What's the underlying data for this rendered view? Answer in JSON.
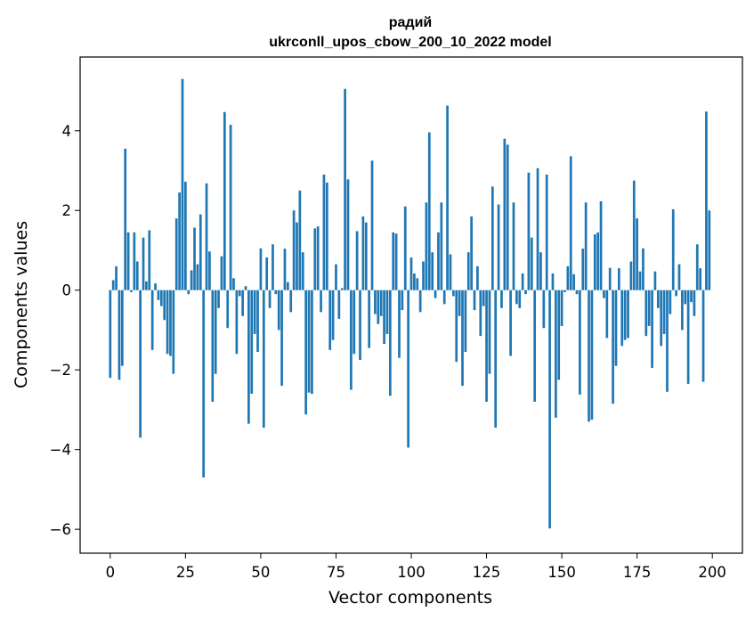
{
  "chart_data": {
    "type": "bar",
    "title": "радий",
    "subtitle": "ukrconll_upos_cbow_200_10_2022 model",
    "xlabel": "Vector components",
    "ylabel": "Components values",
    "xlim": [
      -10,
      210
    ],
    "ylim": [
      -6.6,
      5.85
    ],
    "xticks": [
      0,
      25,
      50,
      75,
      100,
      125,
      150,
      175,
      200
    ],
    "xtick_labels": [
      "0",
      "25",
      "50",
      "75",
      "100",
      "125",
      "150",
      "175",
      "200"
    ],
    "yticks": [
      -6,
      -4,
      -2,
      0,
      2,
      4
    ],
    "ytick_labels": [
      "−6",
      "−4",
      "−2",
      "0",
      "2",
      "4"
    ],
    "bar_color": "#1f77b4",
    "grid": false,
    "legend": "none",
    "x": [
      0,
      1,
      2,
      3,
      4,
      5,
      6,
      7,
      8,
      9,
      10,
      11,
      12,
      13,
      14,
      15,
      16,
      17,
      18,
      19,
      20,
      21,
      22,
      23,
      24,
      25,
      26,
      27,
      28,
      29,
      30,
      31,
      32,
      33,
      34,
      35,
      36,
      37,
      38,
      39,
      40,
      41,
      42,
      43,
      44,
      45,
      46,
      47,
      48,
      49,
      50,
      51,
      52,
      53,
      54,
      55,
      56,
      57,
      58,
      59,
      60,
      61,
      62,
      63,
      64,
      65,
      66,
      67,
      68,
      69,
      70,
      71,
      72,
      73,
      74,
      75,
      76,
      77,
      78,
      79,
      80,
      81,
      82,
      83,
      84,
      85,
      86,
      87,
      88,
      89,
      90,
      91,
      92,
      93,
      94,
      95,
      96,
      97,
      98,
      99,
      100,
      101,
      102,
      103,
      104,
      105,
      106,
      107,
      108,
      109,
      110,
      111,
      112,
      113,
      114,
      115,
      116,
      117,
      118,
      119,
      120,
      121,
      122,
      123,
      124,
      125,
      126,
      127,
      128,
      129,
      130,
      131,
      132,
      133,
      134,
      135,
      136,
      137,
      138,
      139,
      140,
      141,
      142,
      143,
      144,
      145,
      146,
      147,
      148,
      149,
      150,
      151,
      152,
      153,
      154,
      155,
      156,
      157,
      158,
      159,
      160,
      161,
      162,
      163,
      164,
      165,
      166,
      167,
      168,
      169,
      170,
      171,
      172,
      173,
      174,
      175,
      176,
      177,
      178,
      179,
      180,
      181,
      182,
      183,
      184,
      185,
      186,
      187,
      188,
      189,
      190,
      191,
      192,
      193,
      194,
      195,
      196,
      197,
      198,
      199
    ],
    "values": [
      -2.2,
      0.25,
      0.6,
      -2.25,
      -1.9,
      3.55,
      1.45,
      -0.05,
      1.45,
      0.72,
      -3.7,
      1.32,
      0.22,
      1.5,
      -1.5,
      0.17,
      -0.25,
      -0.4,
      -0.75,
      -1.6,
      -1.65,
      -2.1,
      1.8,
      2.45,
      5.3,
      2.72,
      -0.1,
      0.5,
      1.57,
      0.65,
      1.9,
      -4.7,
      2.68,
      0.97,
      -2.8,
      -2.1,
      -0.45,
      0.85,
      4.47,
      -0.95,
      4.15,
      0.3,
      -1.6,
      -0.15,
      -0.65,
      0.1,
      -3.35,
      -2.6,
      -1.1,
      -1.55,
      1.05,
      -3.45,
      0.82,
      -0.45,
      1.15,
      -0.1,
      -1.0,
      -2.4,
      1.04,
      0.2,
      -0.55,
      2.0,
      1.7,
      2.5,
      0.95,
      -3.12,
      -2.57,
      -2.6,
      1.55,
      1.6,
      -0.55,
      2.9,
      2.7,
      -1.5,
      -1.25,
      0.65,
      -0.72,
      0.05,
      5.05,
      2.78,
      -2.5,
      -1.6,
      1.48,
      -1.75,
      1.85,
      1.7,
      -1.45,
      3.25,
      -0.6,
      -0.85,
      -0.65,
      -1.35,
      -1.1,
      -2.65,
      1.45,
      1.42,
      -1.7,
      -0.5,
      2.1,
      -3.95,
      0.82,
      0.42,
      0.3,
      -0.55,
      0.72,
      2.2,
      3.96,
      0.95,
      -0.2,
      1.45,
      2.2,
      -0.35,
      4.63,
      0.9,
      -0.15,
      -1.8,
      -0.65,
      -2.4,
      -1.55,
      0.95,
      1.85,
      -0.5,
      0.6,
      -1.15,
      -0.4,
      -2.8,
      -2.1,
      2.6,
      -3.45,
      2.15,
      -0.45,
      3.8,
      3.65,
      -1.65,
      2.2,
      -0.35,
      -0.45,
      0.42,
      -0.1,
      2.95,
      1.32,
      -2.8,
      3.06,
      0.95,
      -0.95,
      2.9,
      -5.98,
      0.42,
      -3.2,
      -2.25,
      -0.9,
      -0.05,
      0.6,
      3.36,
      0.4,
      -0.1,
      -2.62,
      1.04,
      2.2,
      -3.3,
      -3.25,
      1.4,
      1.45,
      2.23,
      -0.2,
      -1.2,
      0.56,
      -2.85,
      -1.9,
      0.55,
      -1.4,
      -1.25,
      -1.2,
      0.72,
      2.75,
      1.8,
      0.47,
      1.05,
      -1.15,
      -0.9,
      -1.95,
      0.47,
      -0.45,
      -1.4,
      -1.1,
      -2.55,
      -0.6,
      2.03,
      -0.15,
      0.65,
      -1.0,
      -0.35,
      -2.35,
      -0.3,
      -0.65,
      1.15,
      0.55,
      -2.3,
      4.48,
      2.0
    ]
  }
}
